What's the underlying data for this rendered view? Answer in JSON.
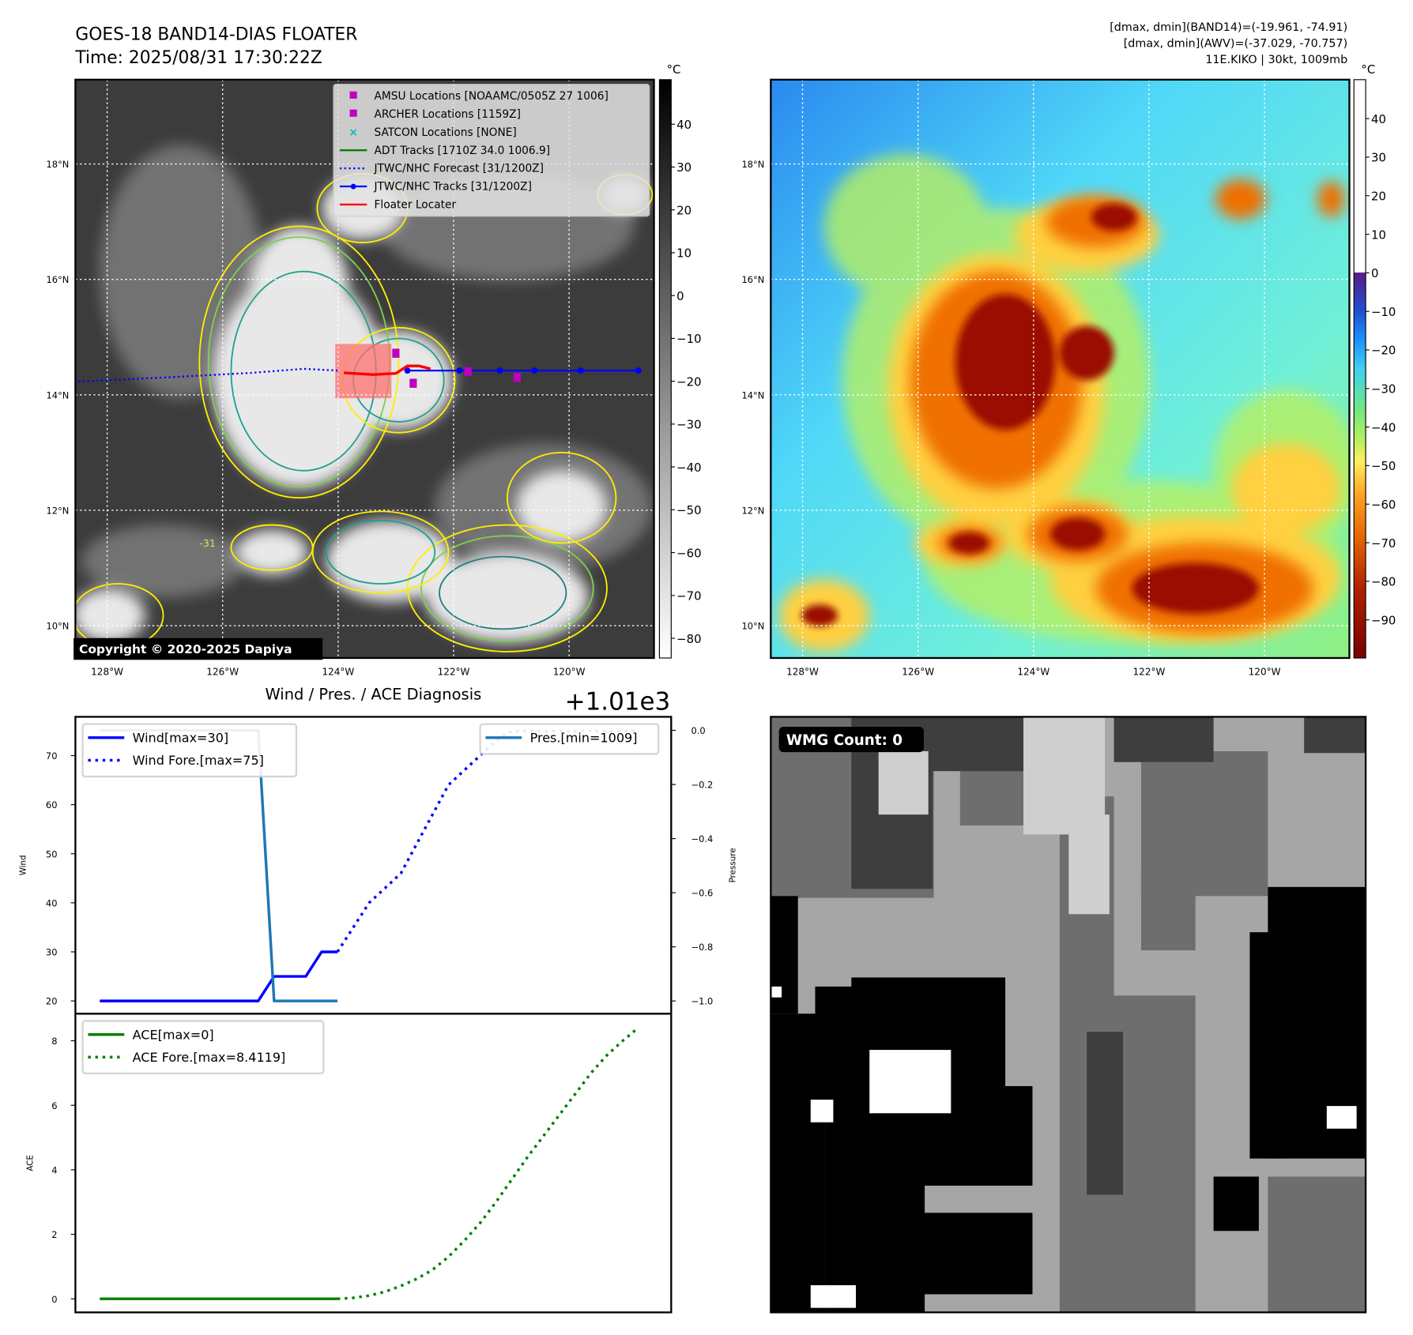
{
  "header": {
    "title": "GOES-18 BAND14-DIAS FLOATER",
    "time": "Time: 2025/08/31 17:30:22Z",
    "stats_band14": "[dmax, dmin](BAND14)=(-19.961, -74.91)",
    "stats_awv": "[dmax, dmin](AWV)=(-37.029, -70.757)",
    "storm": "11E.KIKO | 30kt, 1009mb"
  },
  "map": {
    "lon_labels": [
      "128°W",
      "126°W",
      "124°W",
      "122°W",
      "120°W"
    ],
    "lon_values": [
      -128,
      -126,
      -124,
      -122,
      -120
    ],
    "lat_labels": [
      "18°N",
      "16°N",
      "14°N",
      "12°N",
      "10°N"
    ],
    "lat_values": [
      18,
      16,
      14,
      12,
      10
    ],
    "lon_range": [
      -128.55,
      -118.53
    ],
    "lat_range": [
      9.44,
      19.46
    ],
    "copyright": "Copyright © 2020-2025 Dapiya",
    "contour_label": "-31",
    "legend": [
      {
        "label": "AMSU Locations [NOAAMC/0505Z 27 1006]",
        "marker": "square",
        "color": "#c000c0"
      },
      {
        "label": "ARCHER Locations [1159Z]",
        "marker": "square",
        "color": "#c000c0"
      },
      {
        "label": "SATCON Locations [NONE]",
        "marker": "x",
        "color": "#00bfbf"
      },
      {
        "label": "ADT Tracks [1710Z 34.0 1006.9]",
        "marker": "line",
        "color": "#008000"
      },
      {
        "label": "JTWC/NHC Forecast [31/1200Z]",
        "marker": "dotted",
        "color": "#0000ff"
      },
      {
        "label": "JTWC/NHC Tracks [31/1200Z]",
        "marker": "line-dot",
        "color": "#0000ff"
      },
      {
        "label": "Floater Locater",
        "marker": "line",
        "color": "#ff0000"
      }
    ],
    "forecast_track": [
      [
        -128.5,
        14.23
      ],
      [
        -127,
        14.3
      ],
      [
        -125.5,
        14.38
      ],
      [
        -124.6,
        14.45
      ],
      [
        -124.0,
        14.42
      ]
    ],
    "jtwc_track": [
      [
        -122.8,
        14.42
      ],
      [
        -121.9,
        14.42
      ],
      [
        -121.2,
        14.42
      ],
      [
        -120.6,
        14.42
      ],
      [
        -119.8,
        14.42
      ],
      [
        -118.8,
        14.42
      ]
    ],
    "floater_track": [
      [
        -123.9,
        14.38
      ],
      [
        -123.4,
        14.35
      ],
      [
        -123.0,
        14.37
      ],
      [
        -122.8,
        14.5
      ],
      [
        -122.6,
        14.5
      ],
      [
        -122.4,
        14.45
      ]
    ],
    "amsu_points": [
      [
        -123.0,
        14.72
      ],
      [
        -122.7,
        14.2
      ],
      [
        -121.75,
        14.4
      ],
      [
        -120.9,
        14.3
      ]
    ],
    "colorbar_left": {
      "unit": "°C",
      "ticks": [
        40,
        30,
        20,
        10,
        0,
        -10,
        -20,
        -30,
        -40,
        -50,
        -60,
        -70,
        -80
      ],
      "range": [
        -84.6,
        50.4
      ],
      "colors": [
        "#000000",
        "#ffffff"
      ]
    },
    "colorbar_right": {
      "unit": "°C",
      "ticks": [
        40,
        30,
        20,
        10,
        0,
        -10,
        -20,
        -30,
        -40,
        -50,
        -60,
        -70,
        -80,
        -90
      ],
      "range": [
        -99.9,
        50.1
      ]
    }
  },
  "diag": {
    "title": "Wind / Pres. / ACE Diagnosis",
    "offset": "+1.01e3"
  },
  "chart_data": [
    {
      "type": "line",
      "title": "Wind / Pres. / ACE Diagnosis",
      "ylabel": "Wind",
      "y2label": "Pressure",
      "xlim": [
        -1.54,
        36.06
      ],
      "ylim": [
        17.4,
        77.9
      ],
      "y2lim": [
        -1.047,
        0.05
      ],
      "yticks": [
        20,
        30,
        40,
        50,
        60,
        70
      ],
      "y2ticks": [
        "0.0",
        "−0.2",
        "−0.4",
        "−0.6",
        "−0.8",
        "−1.0"
      ],
      "y2tick_values": [
        0,
        -0.2,
        -0.4,
        -0.6,
        -0.8,
        -1.0
      ],
      "series": [
        {
          "name": "Wind[max=30]",
          "axis": "left",
          "style": "solid",
          "color": "#0000ff",
          "x": [
            0,
            1,
            2,
            3,
            4,
            5,
            6,
            7,
            8,
            9,
            10,
            11,
            12,
            13,
            14,
            15
          ],
          "y": [
            20,
            20,
            20,
            20,
            20,
            20,
            20,
            20,
            20,
            20,
            20,
            25,
            25,
            25,
            30,
            30
          ]
        },
        {
          "name": "Wind Fore.[max=75]",
          "axis": "left",
          "style": "dotted",
          "color": "#0000ff",
          "x": [
            15,
            16,
            17,
            18,
            19,
            20,
            21,
            22,
            23,
            24,
            25,
            26,
            27,
            28,
            29,
            30,
            31,
            32,
            33,
            34
          ],
          "y": [
            30,
            35,
            40,
            43,
            46,
            52,
            58,
            64,
            67,
            70,
            73,
            75,
            75,
            75,
            75,
            75,
            75,
            75,
            75,
            75
          ]
        },
        {
          "name": "Pres.[min=1009]",
          "axis": "right",
          "style": "solid",
          "color": "#1f77b4",
          "x": [
            0,
            1,
            2,
            3,
            4,
            5,
            6,
            7,
            8,
            9,
            10,
            11,
            12,
            13,
            14,
            15
          ],
          "y": [
            0,
            0,
            0,
            0,
            0,
            0,
            0,
            0,
            0,
            0,
            0,
            -1,
            -1,
            -1,
            -1,
            -1
          ]
        }
      ]
    },
    {
      "type": "line",
      "ylabel": "ACE",
      "xlim": [
        -1.54,
        36.06
      ],
      "ylim": [
        -0.42,
        8.84
      ],
      "yticks": [
        0,
        2,
        4,
        6,
        8
      ],
      "series": [
        {
          "name": "ACE[max=0]",
          "style": "solid",
          "color": "#008000",
          "x": [
            0,
            15
          ],
          "y": [
            0,
            0
          ]
        },
        {
          "name": "ACE Fore.[max=8.4119]",
          "style": "dotted",
          "color": "#008000",
          "x": [
            15,
            16,
            17,
            18,
            19,
            20,
            21,
            22,
            23,
            24,
            25,
            26,
            27,
            28,
            29,
            30,
            31,
            32,
            33,
            34
          ],
          "y": [
            0,
            0.03,
            0.1,
            0.22,
            0.4,
            0.62,
            0.9,
            1.3,
            1.8,
            2.35,
            3.0,
            3.7,
            4.4,
            5.05,
            5.7,
            6.35,
            7.0,
            7.55,
            8.0,
            8.41
          ]
        }
      ]
    }
  ],
  "wmg": {
    "label": "WMG Count: 0"
  }
}
